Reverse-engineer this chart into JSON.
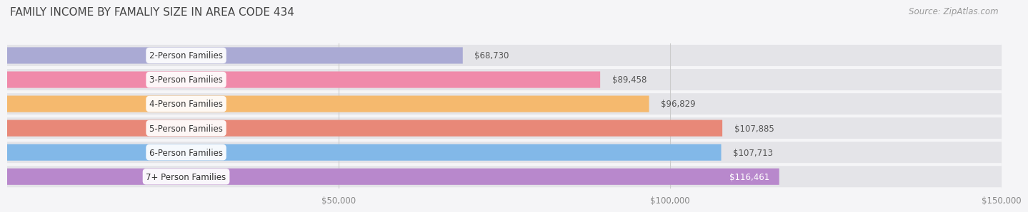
{
  "title": "FAMILY INCOME BY FAMALIY SIZE IN AREA CODE 434",
  "source": "Source: ZipAtlas.com",
  "categories": [
    "2-Person Families",
    "3-Person Families",
    "4-Person Families",
    "5-Person Families",
    "6-Person Families",
    "7+ Person Families"
  ],
  "values": [
    68730,
    89458,
    96829,
    107885,
    107713,
    116461
  ],
  "bar_colors": [
    "#aaaad4",
    "#f08aaa",
    "#f5b96e",
    "#e88878",
    "#82b8e8",
    "#b888cc"
  ],
  "value_label_inside": [
    false,
    false,
    false,
    false,
    false,
    true
  ],
  "xlim_min": 0,
  "xlim_max": 150000,
  "xtick_positions": [
    50000,
    100000,
    150000
  ],
  "xtick_labels": [
    "$50,000",
    "$100,000",
    "$150,000"
  ],
  "background_color": "#f5f5f7",
  "row_bg_color": "#e4e4e8",
  "title_fontsize": 11,
  "label_fontsize": 8.5,
  "value_fontsize": 8.5,
  "source_fontsize": 8.5,
  "bar_height": 0.68
}
